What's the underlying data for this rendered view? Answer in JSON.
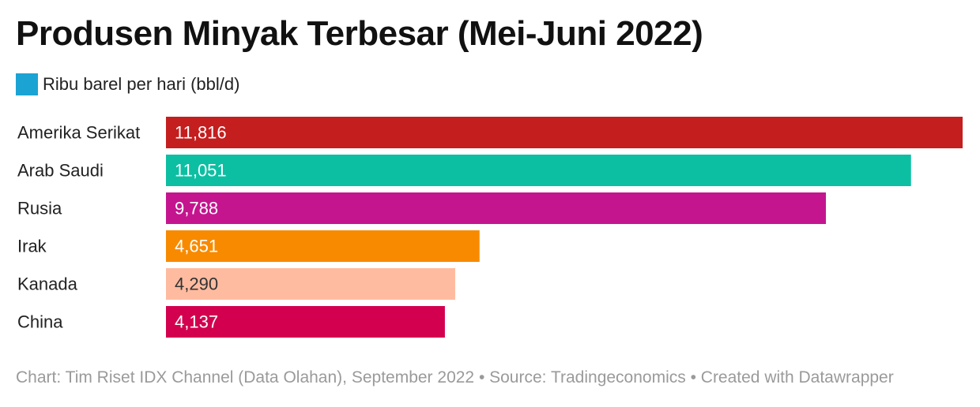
{
  "chart_data": {
    "type": "bar",
    "orientation": "horizontal",
    "title": "Produsen Minyak Terbesar (Mei-Juni 2022)",
    "legend": [
      {
        "label": "Ribu barel per hari (bbl/d)",
        "color": "#1ba3d4"
      }
    ],
    "legend_position": "top-left",
    "categories": [
      "Amerika Serikat",
      "Arab Saudi",
      "Rusia",
      "Irak",
      "Kanada",
      "China"
    ],
    "values": [
      11816,
      11051,
      9788,
      4651,
      4290,
      4137
    ],
    "value_labels": [
      "11,816",
      "11,051",
      "9,788",
      "4,651",
      "4,290",
      "4,137"
    ],
    "colors": [
      "#c41e1e",
      "#0dbfa2",
      "#c4158f",
      "#f88a00",
      "#ffbba0",
      "#d3004f"
    ],
    "label_colors": [
      "#ffffff",
      "#ffffff",
      "#ffffff",
      "#ffffff",
      "#333333",
      "#ffffff"
    ],
    "xlim": [
      0,
      11816
    ],
    "grid": false
  },
  "footer": "Chart: Tim Riset IDX Channel (Data Olahan), September 2022 • Source: Tradingeconomics • Created with Datawrapper"
}
